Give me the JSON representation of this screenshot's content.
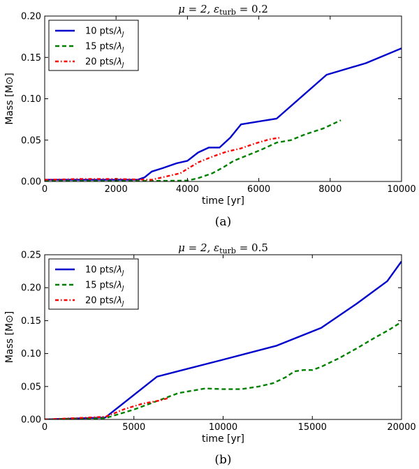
{
  "chart_data": [
    {
      "type": "line",
      "title": "μ = 2, ε_turb = 0.2",
      "title_parts": {
        "mu": "μ = 2, ",
        "eps": "ε",
        "sub": "turb",
        "rest": " = 0.2"
      },
      "xlabel": "time [yr]",
      "ylabel": "Mass [M⊙]",
      "xlim": [
        0,
        10000
      ],
      "ylim": [
        0,
        0.2
      ],
      "xticks": [
        "0",
        "2000",
        "4000",
        "6000",
        "8000",
        "10000"
      ],
      "yticks": [
        "0.00",
        "0.05",
        "0.10",
        "0.15",
        "0.20"
      ],
      "caption": "(a)",
      "legend_position": "top-left",
      "series": [
        {
          "name": "10 pts/λJ",
          "color": "#0000cc",
          "style": "solid",
          "x": [
            0,
            2600,
            2800,
            3000,
            3300,
            3700,
            4000,
            4300,
            4600,
            4900,
            5200,
            5500,
            6500,
            7900,
            9000,
            10000
          ],
          "y": [
            0.002,
            0.002,
            0.005,
            0.012,
            0.016,
            0.022,
            0.025,
            0.035,
            0.041,
            0.041,
            0.053,
            0.069,
            0.076,
            0.129,
            0.143,
            0.161
          ]
        },
        {
          "name": "15 pts/λJ",
          "color": "#008000",
          "style": "dashed",
          "x": [
            0,
            2500,
            4000,
            4300,
            4700,
            5000,
            5300,
            5700,
            6100,
            6500,
            6900,
            7300,
            7800,
            8300
          ],
          "y": [
            0.0005,
            0.0005,
            0.001,
            0.004,
            0.01,
            0.017,
            0.025,
            0.032,
            0.039,
            0.047,
            0.05,
            0.057,
            0.064,
            0.074
          ]
        },
        {
          "name": "20 pts/λJ",
          "color": "#ff0000",
          "style": "dashdot",
          "x": [
            0,
            1000,
            2000,
            3000,
            3400,
            3800,
            4300,
            4700,
            5100,
            5500,
            5900,
            6300,
            6600
          ],
          "y": [
            0.002,
            0.003,
            0.003,
            0.002,
            0.006,
            0.01,
            0.023,
            0.03,
            0.036,
            0.04,
            0.046,
            0.051,
            0.053
          ]
        }
      ]
    },
    {
      "type": "line",
      "title": "μ = 2, ε_turb = 0.5",
      "title_parts": {
        "mu": "μ = 2, ",
        "eps": "ε",
        "sub": "turb",
        "rest": " = 0.5"
      },
      "xlabel": "time [yr]",
      "ylabel": "Mass [M⊙]",
      "xlim": [
        0,
        20000
      ],
      "ylim": [
        0,
        0.25
      ],
      "xticks": [
        "0",
        "5000",
        "10000",
        "15000",
        "20000"
      ],
      "yticks": [
        "0.00",
        "0.05",
        "0.10",
        "0.15",
        "0.20",
        "0.25"
      ],
      "caption": "(b)",
      "legend_position": "top-left",
      "series": [
        {
          "name": "10 pts/λJ",
          "color": "#0000cc",
          "style": "solid",
          "x": [
            0,
            3400,
            6300,
            9900,
            13000,
            15500,
            17500,
            19200,
            20000
          ],
          "y": [
            0,
            0.003,
            0.065,
            0.09,
            0.112,
            0.139,
            0.176,
            0.21,
            0.24
          ]
        },
        {
          "name": "15 pts/λJ",
          "color": "#008000",
          "style": "dashed",
          "x": [
            0,
            3400,
            5000,
            6500,
            7500,
            9000,
            10000,
            11000,
            12000,
            12800,
            13500,
            14000,
            14500,
            15000,
            15500,
            16500,
            17500,
            18500,
            19300,
            20000
          ],
          "y": [
            0,
            0.002,
            0.015,
            0.03,
            0.04,
            0.047,
            0.046,
            0.046,
            0.05,
            0.055,
            0.064,
            0.073,
            0.075,
            0.075,
            0.08,
            0.093,
            0.108,
            0.124,
            0.136,
            0.148
          ]
        },
        {
          "name": "20 pts/λJ",
          "color": "#ff0000",
          "style": "dashdot",
          "x": [
            0,
            3400,
            4500,
            5500,
            6500,
            7000
          ],
          "y": [
            0,
            0.004,
            0.016,
            0.024,
            0.029,
            0.033
          ]
        }
      ]
    }
  ]
}
